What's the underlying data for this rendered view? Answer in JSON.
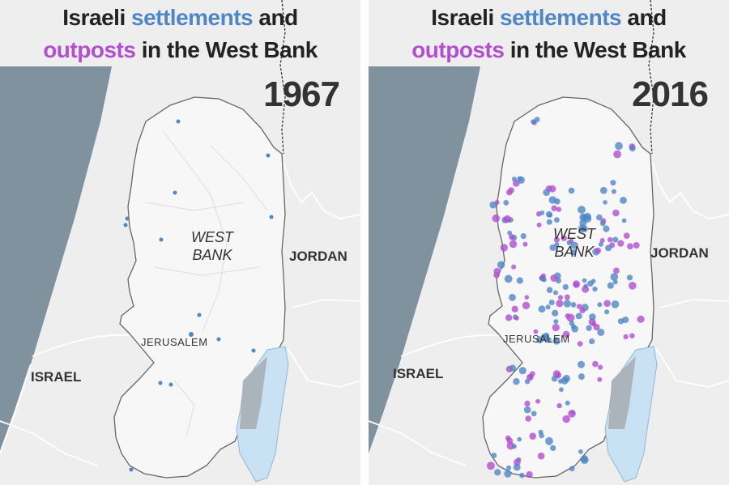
{
  "title": {
    "part1": "Israeli ",
    "settlements": "settlements",
    "part2": " and",
    "outposts": "outposts",
    "part3": " in the West Bank"
  },
  "labels": {
    "west": "WEST",
    "bank": "BANK",
    "jordan": "JORDAN",
    "israel": "ISRAEL",
    "jerusalem": "JERUSALEM"
  },
  "colors": {
    "settlements": "#4f86c6",
    "outposts": "#b24fcf",
    "sea": "#7f929e",
    "dead_sea": "#c9e2f3",
    "land": "#eeeeee",
    "west_bank": "#f7f7f7"
  },
  "panels": [
    {
      "year": "1967"
    },
    {
      "year": "2016"
    }
  ]
}
